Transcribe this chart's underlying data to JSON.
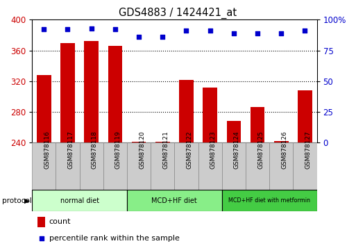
{
  "title": "GDS4883 / 1424421_at",
  "samples": [
    "GSM878116",
    "GSM878117",
    "GSM878118",
    "GSM878119",
    "GSM878120",
    "GSM878121",
    "GSM878122",
    "GSM878123",
    "GSM878124",
    "GSM878125",
    "GSM878126",
    "GSM878127"
  ],
  "counts": [
    328,
    370,
    372,
    366,
    241,
    241,
    322,
    312,
    268,
    286,
    242,
    308
  ],
  "percentile_ranks": [
    92,
    92,
    93,
    92,
    86,
    86,
    91,
    91,
    89,
    89,
    89,
    91
  ],
  "ylim_left": [
    240,
    400
  ],
  "ylim_right": [
    0,
    100
  ],
  "yticks_left": [
    240,
    280,
    320,
    360,
    400
  ],
  "yticks_right": [
    0,
    25,
    50,
    75,
    100
  ],
  "ytick_labels_right": [
    "0",
    "25",
    "50",
    "75",
    "100%"
  ],
  "bar_color": "#cc0000",
  "dot_color": "#0000cc",
  "tick_label_color_left": "#cc0000",
  "tick_label_color_right": "#0000cc",
  "bar_width": 0.6,
  "protocol_groups": [
    {
      "label": "normal diet",
      "start": 0,
      "end": 4,
      "color": "#ccffcc"
    },
    {
      "label": "MCD+HF diet",
      "start": 4,
      "end": 8,
      "color": "#88ee88"
    },
    {
      "label": "MCD+HF diet with metformin",
      "start": 8,
      "end": 12,
      "color": "#44cc44"
    }
  ],
  "protocol_label": "protocol",
  "legend_count_label": "count",
  "legend_pct_label": "percentile rank within the sample",
  "grid_ticks": [
    280,
    320,
    360
  ],
  "cell_color": "#cccccc",
  "cell_edge_color": "#888888"
}
